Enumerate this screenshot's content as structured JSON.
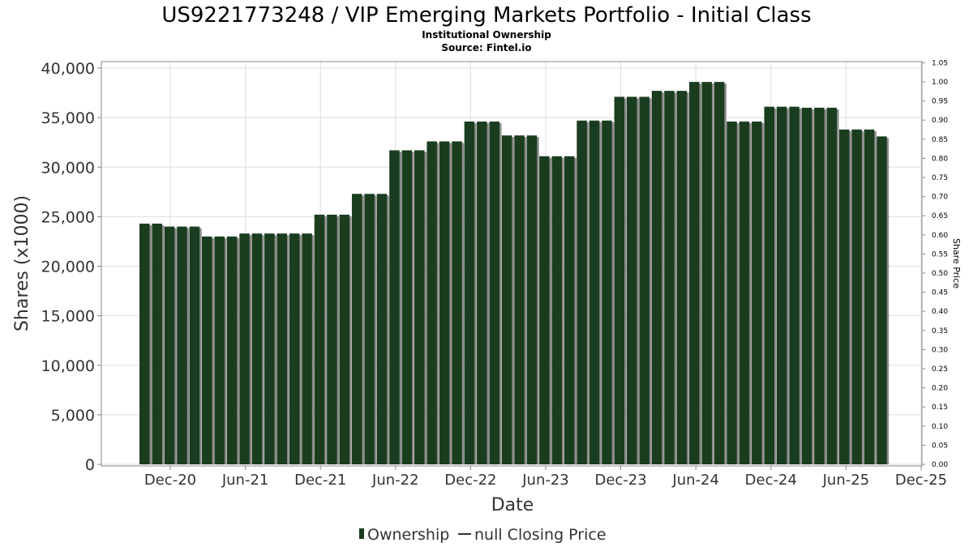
{
  "title": "US9221773248 / VIP Emerging Markets Portfolio - Initial Class",
  "subtitle_1": "Institutional Ownership",
  "subtitle_2": "Source: Fintel.io",
  "colors": {
    "bar": "#1a3d1f",
    "bar_shadow": "#8a8a8a",
    "grid": "#dddddd",
    "axis": "#888888"
  },
  "chart_data": {
    "type": "bar",
    "title": "US9221773248 / VIP Emerging Markets Portfolio - Initial Class",
    "xlabel": "Date",
    "ylabel": "Shares (x1000)",
    "y2label": "Share Price",
    "ylim": [
      0,
      40500
    ],
    "y2lim": [
      0,
      1.05
    ],
    "yticks": [
      0,
      5000,
      10000,
      15000,
      20000,
      25000,
      30000,
      35000,
      40000
    ],
    "ytick_labels": [
      "0",
      "5,000",
      "10,000",
      "15,000",
      "20,000",
      "25,000",
      "30,000",
      "35,000",
      "40,000"
    ],
    "y2ticks": [
      "0.00",
      "0.05",
      "0.10",
      "0.15",
      "0.20",
      "0.25",
      "0.30",
      "0.35",
      "0.40",
      "0.45",
      "0.50",
      "0.55",
      "0.60",
      "0.65",
      "0.70",
      "0.75",
      "0.80",
      "0.85",
      "0.90",
      "0.95",
      "1.00",
      "1.05"
    ],
    "xticks": [
      "Dec-20",
      "Jun-21",
      "Dec-21",
      "Jun-22",
      "Dec-22",
      "Jun-23",
      "Dec-23",
      "Jun-24",
      "Dec-24",
      "Jun-25",
      "Dec-25"
    ],
    "grid": true,
    "legend_position": "bottom",
    "series": [
      {
        "name": "Ownership",
        "type": "bar",
        "values": [
          24300,
          24300,
          24000,
          24000,
          24000,
          23000,
          23000,
          23000,
          23300,
          23300,
          23300,
          23300,
          23300,
          23300,
          25200,
          25200,
          25200,
          27300,
          27300,
          27300,
          31700,
          31700,
          31700,
          32600,
          32600,
          32600,
          34600,
          34600,
          34600,
          33200,
          33200,
          33200,
          31100,
          31100,
          31100,
          34700,
          34700,
          34700,
          37100,
          37100,
          37100,
          37700,
          37700,
          37700,
          38600,
          38600,
          38600,
          34600,
          34600,
          34600,
          36100,
          36100,
          36100,
          36000,
          36000,
          36000,
          33800,
          33800,
          33800,
          33100
        ]
      },
      {
        "name": "null Closing Price",
        "type": "line",
        "values": []
      }
    ]
  },
  "legend": {
    "ownership": "Ownership",
    "price": "null Closing Price"
  }
}
